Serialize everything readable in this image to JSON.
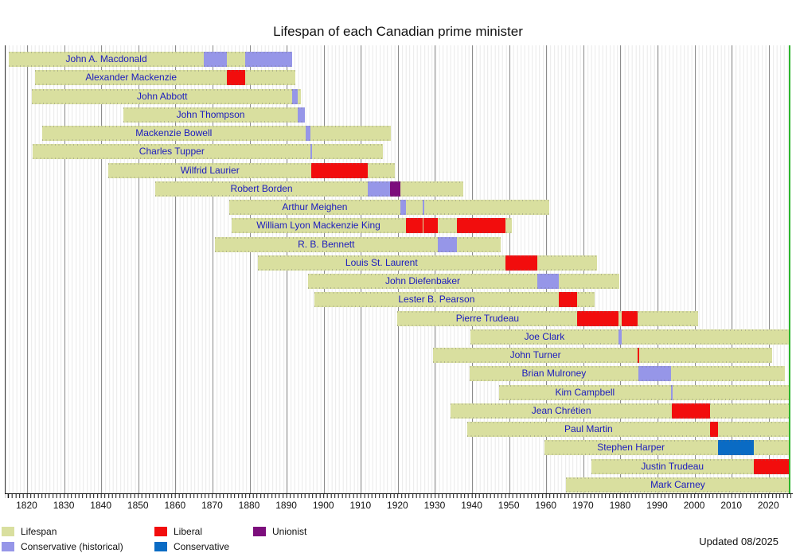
{
  "title": "Lifespan of each Canadian prime minister",
  "updated_note": "Updated 08/2025",
  "colors": {
    "lifespan": "#d9df9f",
    "liberal": "#f20d0d",
    "conservative": "#0a6bc4",
    "conservative_historical": "#9696e8",
    "unionist": "#7c0e7c",
    "now_line": "#2cb52c",
    "label_text": "#1b1bbe"
  },
  "legend": [
    {
      "key": "lifespan",
      "label": "Lifespan"
    },
    {
      "key": "liberal",
      "label": "Liberal"
    },
    {
      "key": "unionist",
      "label": "Unionist"
    },
    {
      "key": "conservative_historical",
      "label": "Conservative (historical)"
    },
    {
      "key": "conservative",
      "label": "Conservative"
    }
  ],
  "chart_data": {
    "type": "bar",
    "subtype": "timeline-gantt-lifespans",
    "title": "Lifespan of each Canadian prime minister",
    "x_axis": {
      "tick_years": [
        1820,
        1830,
        1840,
        1850,
        1860,
        1870,
        1880,
        1890,
        1900,
        1910,
        1920,
        1930,
        1940,
        1950,
        1960,
        1970,
        1980,
        1990,
        2000,
        2010,
        2020
      ],
      "range_start": 1814.1,
      "range_end": 2025.5,
      "now_marker_year": 2025.5,
      "grid": "annual light, decades dark"
    },
    "legend_position": "bottom-left",
    "pms": [
      {
        "name": "John A. Macdonald",
        "born": 1815.05,
        "died": 1891.4,
        "terms": [
          {
            "party": "conservative_historical",
            "start": 1867.5,
            "end": 1873.85
          },
          {
            "party": "conservative_historical",
            "start": 1878.8,
            "end": 1891.4
          }
        ]
      },
      {
        "name": "Alexander Mackenzie",
        "born": 1822.05,
        "died": 1892.3,
        "terms": [
          {
            "party": "liberal",
            "start": 1873.85,
            "end": 1878.8
          }
        ]
      },
      {
        "name": "John Abbott",
        "born": 1821.2,
        "died": 1893.8,
        "terms": [
          {
            "party": "conservative_historical",
            "start": 1891.45,
            "end": 1892.9
          }
        ]
      },
      {
        "name": "John Thompson",
        "born": 1845.85,
        "died": 1894.9,
        "terms": [
          {
            "party": "conservative_historical",
            "start": 1892.9,
            "end": 1894.9
          }
        ]
      },
      {
        "name": "Mackenzie Bowell",
        "born": 1823.95,
        "died": 1917.95,
        "terms": [
          {
            "party": "conservative_historical",
            "start": 1894.95,
            "end": 1896.35
          }
        ]
      },
      {
        "name": "Charles Tupper",
        "born": 1821.5,
        "died": 1915.8,
        "terms": [
          {
            "party": "conservative_historical",
            "start": 1896.35,
            "end": 1896.55
          }
        ]
      },
      {
        "name": "Wilfrid Laurier",
        "born": 1841.85,
        "died": 1919.15,
        "terms": [
          {
            "party": "liberal",
            "start": 1896.55,
            "end": 1911.75
          }
        ]
      },
      {
        "name": "Robert Borden",
        "born": 1854.5,
        "died": 1937.45,
        "terms": [
          {
            "party": "conservative_historical",
            "start": 1911.75,
            "end": 1917.8
          },
          {
            "party": "unionist",
            "start": 1917.8,
            "end": 1920.5
          }
        ]
      },
      {
        "name": "Arthur Meighen",
        "born": 1874.45,
        "died": 1960.6,
        "terms": [
          {
            "party": "conservative_historical",
            "start": 1920.5,
            "end": 1921.97
          },
          {
            "party": "conservative_historical",
            "start": 1926.5,
            "end": 1926.73
          }
        ]
      },
      {
        "name": "William Lyon Mackenzie King",
        "born": 1874.95,
        "died": 1950.55,
        "terms": [
          {
            "party": "liberal",
            "start": 1921.97,
            "end": 1926.5
          },
          {
            "party": "liberal",
            "start": 1926.73,
            "end": 1930.6
          },
          {
            "party": "liberal",
            "start": 1935.8,
            "end": 1948.85
          }
        ]
      },
      {
        "name": "R. B. Bennett",
        "born": 1870.5,
        "died": 1947.5,
        "terms": [
          {
            "party": "conservative_historical",
            "start": 1930.6,
            "end": 1935.8
          }
        ]
      },
      {
        "name": "Louis St. Laurent",
        "born": 1882.1,
        "died": 1973.55,
        "terms": [
          {
            "party": "liberal",
            "start": 1948.85,
            "end": 1957.45
          }
        ]
      },
      {
        "name": "John Diefenbaker",
        "born": 1895.7,
        "died": 1979.6,
        "terms": [
          {
            "party": "conservative_historical",
            "start": 1957.45,
            "end": 1963.3
          }
        ]
      },
      {
        "name": "Lester B. Pearson",
        "born": 1897.3,
        "died": 1972.97,
        "terms": [
          {
            "party": "liberal",
            "start": 1963.3,
            "end": 1968.3
          }
        ]
      },
      {
        "name": "Pierre Trudeau",
        "born": 1919.8,
        "died": 2000.75,
        "terms": [
          {
            "party": "liberal",
            "start": 1968.3,
            "end": 1979.4
          },
          {
            "party": "liberal",
            "start": 1980.2,
            "end": 1984.5
          }
        ]
      },
      {
        "name": "Joe Clark",
        "born": 1939.4,
        "died": null,
        "terms": [
          {
            "party": "conservative_historical",
            "start": 1979.4,
            "end": 1980.2
          }
        ]
      },
      {
        "name": "John Turner",
        "born": 1929.45,
        "died": 2020.7,
        "terms": [
          {
            "party": "liberal",
            "start": 1984.5,
            "end": 1984.73
          }
        ]
      },
      {
        "name": "Brian Mulroney",
        "born": 1939.2,
        "died": 2024.15,
        "terms": [
          {
            "party": "conservative_historical",
            "start": 1984.73,
            "end": 1993.45
          }
        ]
      },
      {
        "name": "Kim Campbell",
        "born": 1947.2,
        "died": null,
        "terms": [
          {
            "party": "conservative_historical",
            "start": 1993.45,
            "end": 1993.85
          }
        ]
      },
      {
        "name": "Jean Chrétien",
        "born": 1934.05,
        "died": null,
        "terms": [
          {
            "party": "liberal",
            "start": 1993.85,
            "end": 2003.95
          }
        ]
      },
      {
        "name": "Paul Martin",
        "born": 1938.65,
        "died": null,
        "terms": [
          {
            "party": "liberal",
            "start": 2003.95,
            "end": 2006.1
          }
        ]
      },
      {
        "name": "Stephen Harper",
        "born": 1959.35,
        "died": null,
        "terms": [
          {
            "party": "conservative",
            "start": 2006.1,
            "end": 2015.85
          }
        ]
      },
      {
        "name": "Justin Trudeau",
        "born": 1971.97,
        "died": null,
        "terms": [
          {
            "party": "liberal",
            "start": 2015.85,
            "end": 2025.5
          }
        ]
      },
      {
        "name": "Mark Carney",
        "born": 1965.2,
        "died": null,
        "terms": []
      }
    ]
  }
}
